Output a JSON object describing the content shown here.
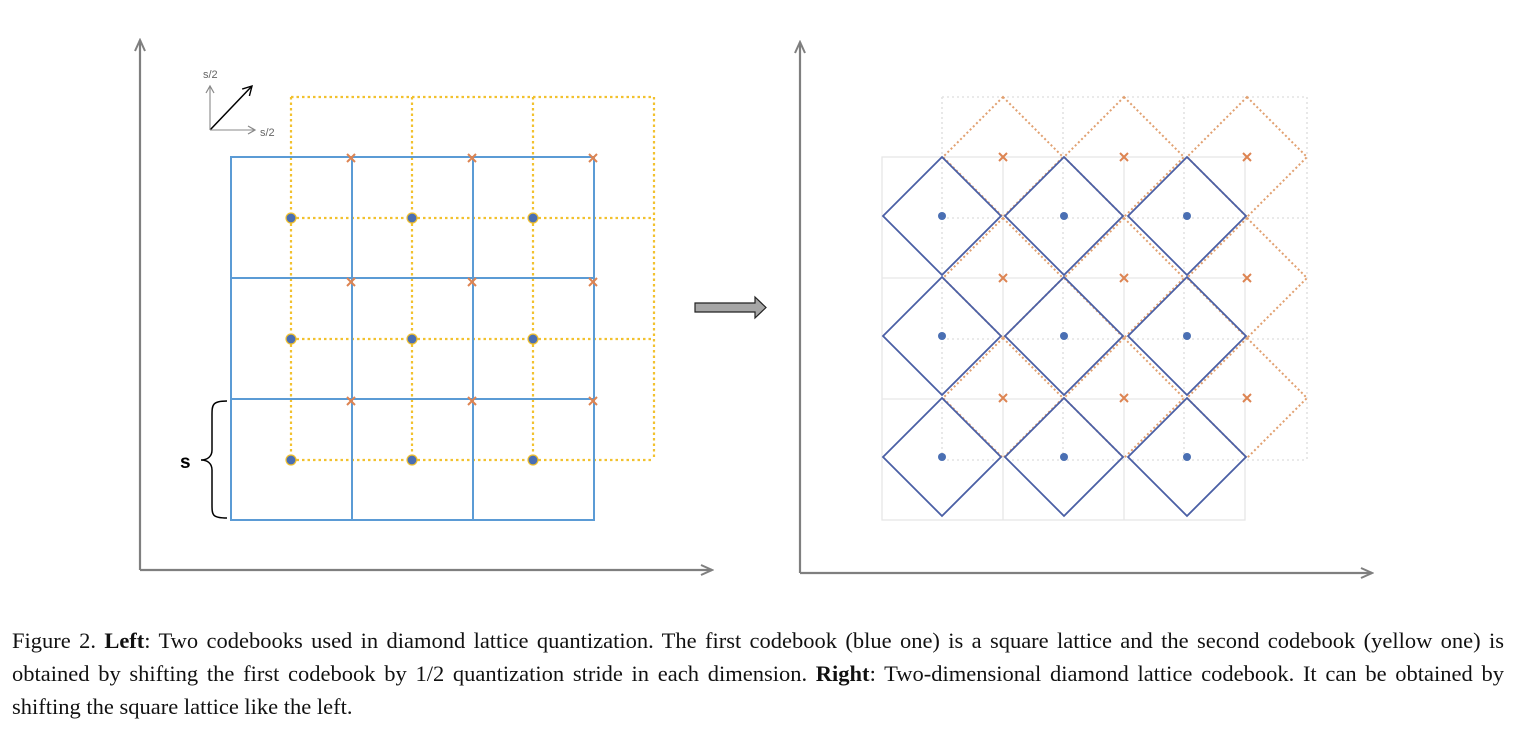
{
  "figure": {
    "left_panel": {
      "stride_label": "s",
      "half_stride_label_x": "s/2",
      "half_stride_label_y": "s/2"
    }
  },
  "caption": {
    "figure_label": "Figure 2.",
    "left_heading": "Left",
    "left_text": ": Two codebooks used in diamond lattice quantization. The first codebook (blue one) is a square lattice and the second codebook (yellow one) is obtained by shifting the first codebook by 1/2 quantization stride in each dimension.",
    "right_heading": "Right",
    "right_text": ": Two-dimensional diamond lattice codebook. It can be obtained by shifting the square lattice like the left."
  },
  "colors": {
    "axis": "#7f7f7f",
    "blue_grid": "#5b9bd5",
    "yellow_grid": "#f2c12e",
    "orange_cross": "#dd8452",
    "blue_point": "#4a6fb3",
    "diamond_blue": "#4a5fa5",
    "diamond_orange": "#e1a070",
    "faint_grid": "#e3e3e3",
    "arrow_fill": "#a6a6a6"
  }
}
